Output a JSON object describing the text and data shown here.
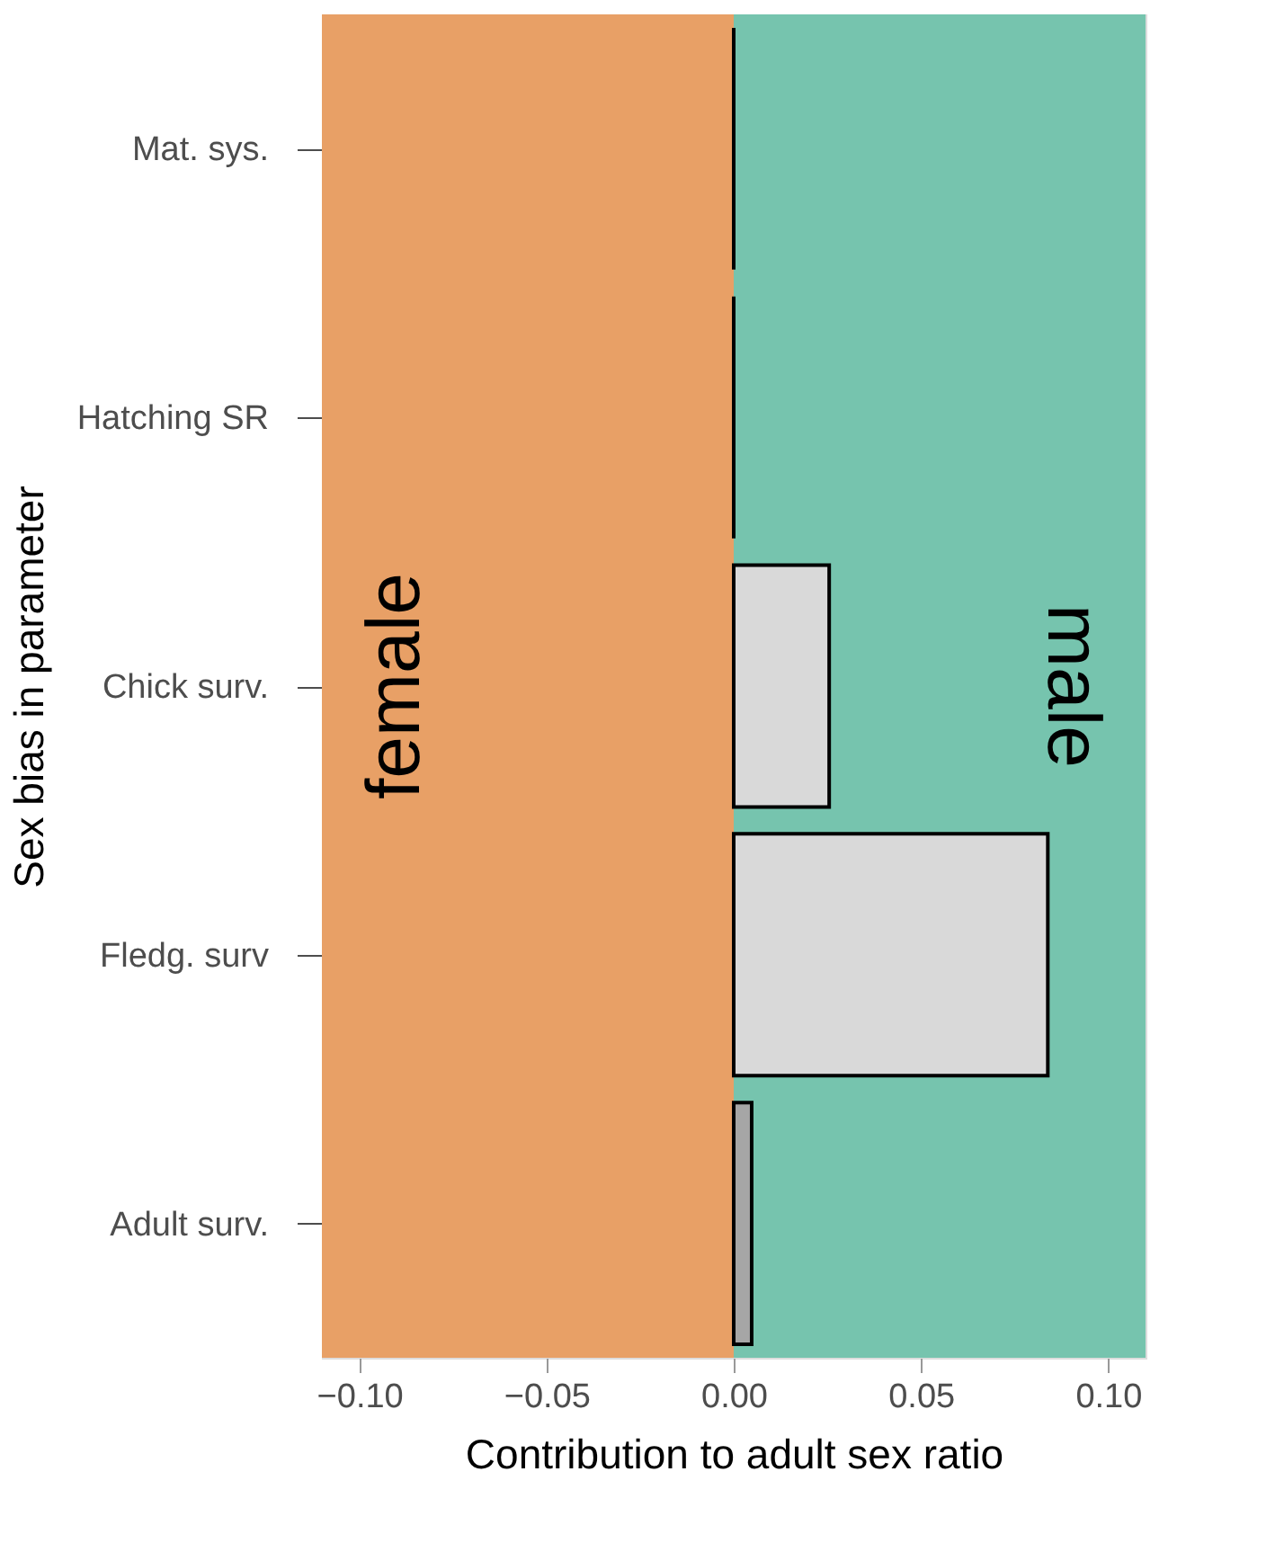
{
  "chart_data": {
    "type": "bar",
    "orientation": "horizontal",
    "xlabel": "Contribution to adult sex ratio",
    "ylabel": "Sex bias in parameter",
    "categories": [
      "Mat. sys.",
      "Hatching SR",
      "Chick surv.",
      "Fledg. surv",
      "Adult surv."
    ],
    "values": [
      0,
      0,
      0.0255,
      0.0839,
      0.0048
    ],
    "colors": [
      "#000000",
      "#000000",
      "#d9d9d9",
      "#d9d9d9",
      "#a6a6a6"
    ],
    "xlim": [
      -0.11,
      0.11
    ],
    "xticks": [
      {
        "value": -0.1,
        "label": "−0.10"
      },
      {
        "value": -0.05,
        "label": "−0.05"
      },
      {
        "value": 0,
        "label": "0.00"
      },
      {
        "value": 0.05,
        "label": "0.05"
      },
      {
        "value": 0.1,
        "label": "0.10"
      }
    ],
    "bands": [
      {
        "axis": "x",
        "from": -0.11,
        "to": 0,
        "label": "female",
        "color": "#e8a066"
      },
      {
        "axis": "x",
        "from": 0,
        "to": 0.11,
        "label": "male",
        "color": "#76c4ae"
      }
    ]
  }
}
